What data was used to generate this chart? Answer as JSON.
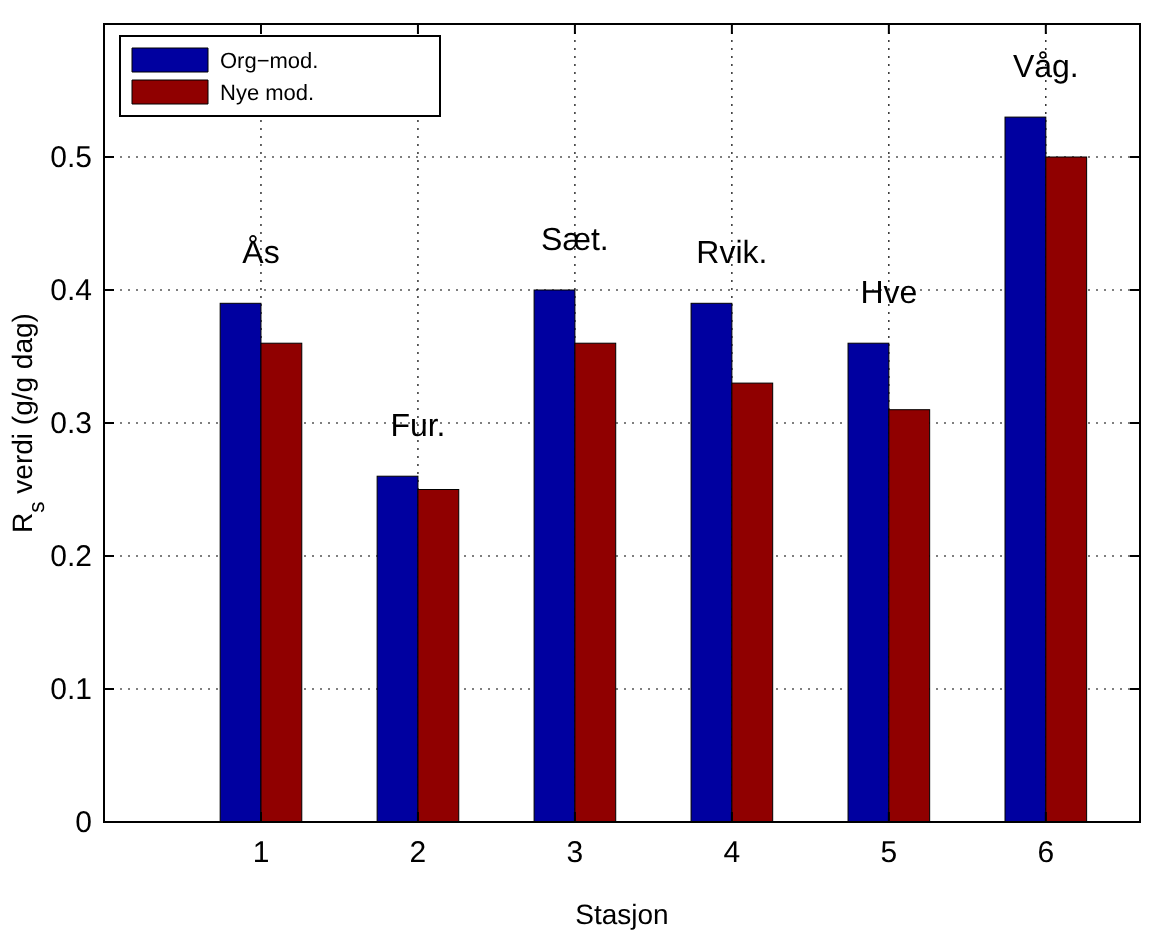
{
  "chart_data": {
    "type": "bar",
    "xlabel": "Stasjon",
    "ylabel": "R$_{s}$ verdi (g/g dag)",
    "x": [
      1,
      2,
      3,
      4,
      5,
      6
    ],
    "series": [
      {
        "name": "Org−mod.",
        "color": "#0000a0",
        "values": [
          0.39,
          0.26,
          0.4,
          0.39,
          0.36,
          0.53
        ]
      },
      {
        "name": "Nye mod.",
        "color": "#900000",
        "values": [
          0.36,
          0.25,
          0.36,
          0.33,
          0.31,
          0.5
        ]
      }
    ],
    "xlim": [
      0,
      6.6
    ],
    "xticks": [
      1,
      2,
      3,
      4,
      5,
      6
    ],
    "ylim": [
      0,
      0.6
    ],
    "yticks": [
      0,
      0.1,
      0.2,
      0.3,
      0.4,
      0.5,
      {
        "value": 0.6,
        "label": null
      }
    ],
    "grid": true,
    "legend": "top left",
    "annotations": [
      "Ås",
      "Fur.",
      "Sæt.",
      "Rvik.",
      "Hve",
      "Våg."
    ]
  }
}
